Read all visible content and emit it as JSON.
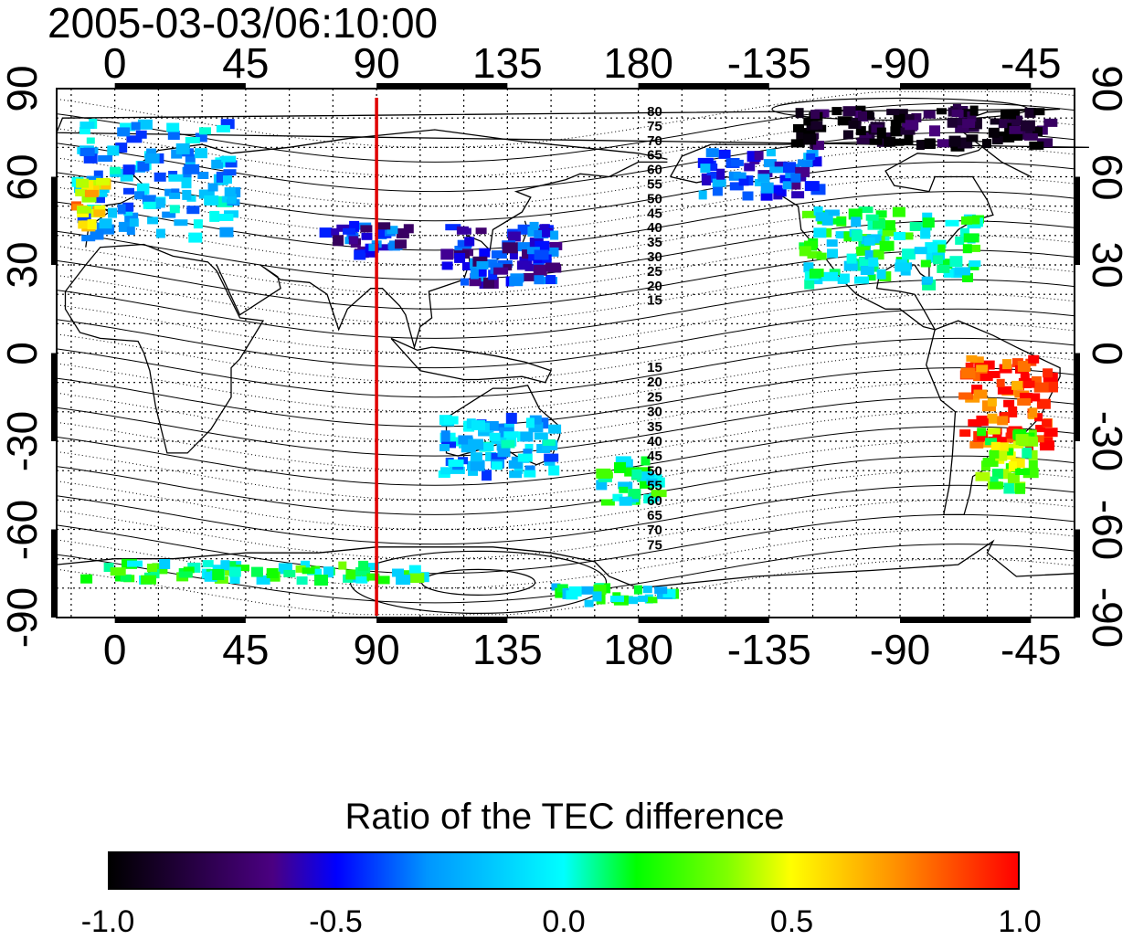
{
  "title": "2005-03-03/06:10:00",
  "longitude_ticks": [
    "0",
    "45",
    "90",
    "135",
    "180",
    "-135",
    "-90",
    "-45"
  ],
  "latitude_ticks": [
    "90",
    "60",
    "30",
    "0",
    "-30",
    "-60",
    "-90"
  ],
  "contour_labels_north": [
    "80",
    "75",
    "70",
    "65",
    "60",
    "55",
    "50",
    "45",
    "40",
    "35",
    "30",
    "25",
    "20",
    "15"
  ],
  "contour_labels_south": [
    "15",
    "20",
    "25",
    "30",
    "35",
    "40",
    "45",
    "50",
    "55",
    "60",
    "65",
    "70",
    "75"
  ],
  "colorbar": {
    "title": "Ratio of the TEC difference",
    "ticks": [
      "-1.0",
      "-0.5",
      "0.0",
      "0.5",
      "1.0"
    ]
  },
  "colors": {
    "marker_line": "#e00000",
    "negative_strong": "#2a0a5e",
    "negative": "#1e50ff",
    "neutral": "#30d0e0",
    "positive": "#40e040",
    "positive_strong": "#ff2020"
  },
  "chart_data": {
    "type": "heatmap",
    "title": "2005-03-03/06:10:00",
    "x_ticks": [
      0,
      45,
      90,
      135,
      180,
      -135,
      -90,
      -45
    ],
    "y_ticks": [
      90,
      60,
      30,
      0,
      -30,
      -60,
      -90
    ],
    "xlim": [
      -20,
      330
    ],
    "ylim": [
      -90,
      90
    ],
    "marker_longitude": 90,
    "grid": true,
    "colorbar_range": [
      -1.0,
      1.0
    ],
    "colorbar_label": "Ratio of the TEC difference",
    "regions": [
      {
        "lon": [
          -15,
          40
        ],
        "lat": [
          40,
          80
        ],
        "value": -0.2
      },
      {
        "lon": [
          -15,
          -5
        ],
        "lat": [
          45,
          60
        ],
        "value": 0.6
      },
      {
        "lon": [
          70,
          100
        ],
        "lat": [
          35,
          45
        ],
        "value": -0.5
      },
      {
        "lon": [
          110,
          150
        ],
        "lat": [
          25,
          45
        ],
        "value": -0.5
      },
      {
        "lon": [
          200,
          240
        ],
        "lat": [
          55,
          70
        ],
        "value": -0.4
      },
      {
        "lon": [
          235,
          295
        ],
        "lat": [
          25,
          50
        ],
        "value": 0.05
      },
      {
        "lon": [
          230,
          320
        ],
        "lat": [
          72,
          85
        ],
        "value": -0.9
      },
      {
        "lon": [
          290,
          320
        ],
        "lat": [
          -30,
          0
        ],
        "value": 0.9
      },
      {
        "lon": [
          295,
          315
        ],
        "lat": [
          -45,
          -25
        ],
        "value": 0.3
      },
      {
        "lon": [
          110,
          150
        ],
        "lat": [
          -40,
          -20
        ],
        "value": -0.2
      },
      {
        "lon": [
          165,
          185
        ],
        "lat": [
          -50,
          -35
        ],
        "value": 0.05
      },
      {
        "lon": [
          -15,
          110
        ],
        "lat": [
          -76,
          -70
        ],
        "value": 0.1
      },
      {
        "lon": [
          150,
          190
        ],
        "lat": [
          -84,
          -78
        ],
        "value": 0.0
      }
    ]
  }
}
